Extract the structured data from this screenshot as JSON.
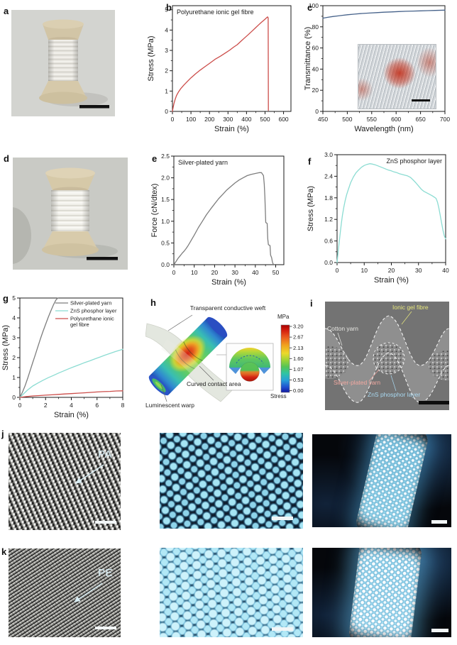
{
  "panels": {
    "a": "a",
    "b": "b",
    "c": "c",
    "d": "d",
    "e": "e",
    "f": "f",
    "g": "g",
    "h": "h",
    "i": "i",
    "j": "j",
    "k": "k"
  },
  "panel_h": {
    "labels": {
      "weft": "Transparent conductive weft",
      "contact": "Curved contact area",
      "warp": "Luminescent warp"
    },
    "colorbar": {
      "unit": "MPa",
      "caption": "Stress",
      "ticks": [
        "3.20",
        "2.67",
        "2.13",
        "1.60",
        "1.07",
        "0.53",
        "0.00"
      ]
    }
  },
  "panel_i": {
    "labels": {
      "ionic": "Ionic gel fibre",
      "cotton": "Cotton yarn",
      "silver": "Silver-plated yarn",
      "zns": "ZnS phosphor layer"
    }
  },
  "panel_j": {
    "fibre_label": "PA"
  },
  "panel_k": {
    "fibre_label": "PE"
  },
  "chart_data": [
    {
      "panel": "b",
      "type": "line",
      "title": "Polyurethane ionic gel fibre",
      "title_pos": "tl",
      "xlabel": "Strain (%)",
      "ylabel": "Stress (MPa)",
      "xlim": [
        0,
        640
      ],
      "ylim": [
        0,
        5.2
      ],
      "xticks": [
        0,
        100,
        200,
        300,
        400,
        500,
        600
      ],
      "yticks": [
        0,
        1,
        2,
        3,
        4,
        5
      ],
      "legend": false,
      "series": [
        {
          "name": "Polyurethane ionic gel fibre",
          "color": "#cc4d4a",
          "points": [
            [
              0,
              0
            ],
            [
              4,
              0.2
            ],
            [
              8,
              0.38
            ],
            [
              14,
              0.58
            ],
            [
              22,
              0.78
            ],
            [
              32,
              0.95
            ],
            [
              45,
              1.12
            ],
            [
              60,
              1.28
            ],
            [
              80,
              1.47
            ],
            [
              100,
              1.65
            ],
            [
              125,
              1.85
            ],
            [
              150,
              2.03
            ],
            [
              175,
              2.2
            ],
            [
              200,
              2.36
            ],
            [
              230,
              2.56
            ],
            [
              260,
              2.72
            ],
            [
              290,
              2.9
            ],
            [
              310,
              3.02
            ],
            [
              330,
              3.16
            ],
            [
              350,
              3.28
            ],
            [
              370,
              3.45
            ],
            [
              390,
              3.62
            ],
            [
              410,
              3.78
            ],
            [
              430,
              3.95
            ],
            [
              450,
              4.12
            ],
            [
              465,
              4.25
            ],
            [
              480,
              4.38
            ],
            [
              492,
              4.47
            ],
            [
              502,
              4.55
            ],
            [
              510,
              4.62
            ],
            [
              514,
              4.65
            ],
            [
              517,
              4.6
            ],
            [
              518,
              0.05
            ]
          ]
        }
      ]
    },
    {
      "panel": "c",
      "type": "line",
      "title": "",
      "title_pos": "tl",
      "xlabel": "Wavelength (nm)",
      "ylabel": "Transmittance (%)",
      "xlim": [
        450,
        700
      ],
      "ylim": [
        0,
        100
      ],
      "xticks": [
        450,
        500,
        550,
        600,
        650,
        700
      ],
      "yticks": [
        0,
        20,
        40,
        60,
        80,
        100
      ],
      "legend": false,
      "series": [
        {
          "name": "Transmittance",
          "color": "#46628a",
          "points": [
            [
              450,
              88.2
            ],
            [
              460,
              89.0
            ],
            [
              470,
              89.7
            ],
            [
              480,
              90.3
            ],
            [
              490,
              90.9
            ],
            [
              500,
              91.4
            ],
            [
              515,
              92.0
            ],
            [
              530,
              92.6
            ],
            [
              545,
              93.0
            ],
            [
              560,
              93.4
            ],
            [
              575,
              93.8
            ],
            [
              590,
              94.1
            ],
            [
              605,
              94.4
            ],
            [
              620,
              94.7
            ],
            [
              635,
              94.9
            ],
            [
              650,
              95.1
            ],
            [
              665,
              95.3
            ],
            [
              680,
              95.5
            ],
            [
              700,
              95.8
            ]
          ]
        }
      ]
    },
    {
      "panel": "e",
      "type": "line",
      "title": "Silver-plated yarn",
      "title_pos": "tl",
      "xlabel": "Strain (%)",
      "ylabel": "Force (cN/dtex)",
      "xlim": [
        0,
        54
      ],
      "ylim": [
        0,
        2.5
      ],
      "xticks": [
        0,
        10,
        20,
        30,
        40,
        50
      ],
      "yticks": [
        0,
        0.5,
        1,
        1.5,
        2,
        2.5
      ],
      "ytick_labels": [
        "0.0",
        "0.5",
        "1.0",
        "1.5",
        "2.0",
        "2.5"
      ],
      "legend": false,
      "series": [
        {
          "name": "Silver-plated yarn",
          "color": "#7e7e7e",
          "points": [
            [
              0,
              0
            ],
            [
              1,
              0.07
            ],
            [
              2,
              0.14
            ],
            [
              3,
              0.2
            ],
            [
              4,
              0.26
            ],
            [
              5,
              0.31
            ],
            [
              6,
              0.37
            ],
            [
              7,
              0.44
            ],
            [
              8,
              0.52
            ],
            [
              9,
              0.6
            ],
            [
              10,
              0.68
            ],
            [
              12,
              0.85
            ],
            [
              14,
              1.0
            ],
            [
              16,
              1.15
            ],
            [
              18,
              1.28
            ],
            [
              20,
              1.4
            ],
            [
              22,
              1.52
            ],
            [
              24,
              1.62
            ],
            [
              26,
              1.72
            ],
            [
              28,
              1.8
            ],
            [
              30,
              1.88
            ],
            [
              32,
              1.95
            ],
            [
              34,
              2.0
            ],
            [
              36,
              2.05
            ],
            [
              38,
              2.08
            ],
            [
              40,
              2.1
            ],
            [
              42,
              2.12
            ],
            [
              43,
              2.12
            ],
            [
              44,
              2.05
            ],
            [
              44.4,
              1.85
            ],
            [
              44.7,
              1.55
            ],
            [
              44.9,
              1.25
            ],
            [
              45.1,
              0.97
            ],
            [
              45.8,
              0.95
            ],
            [
              46.1,
              0.6
            ],
            [
              46.4,
              0.46
            ],
            [
              47.2,
              0.44
            ],
            [
              47.5,
              0.22
            ],
            [
              48,
              0.16
            ],
            [
              48.4,
              0.06
            ],
            [
              48.8,
              0.01
            ]
          ]
        }
      ]
    },
    {
      "panel": "f",
      "type": "line",
      "title": "ZnS phosphor layer",
      "title_pos": "tr",
      "xlabel": "Strain (%)",
      "ylabel": "Stress (MPa)",
      "xlim": [
        0,
        40
      ],
      "ylim": [
        0,
        3
      ],
      "xticks": [
        0,
        10,
        20,
        30,
        40
      ],
      "yticks": [
        0,
        0.6,
        1.2,
        1.8,
        2.4,
        3
      ],
      "ytick_labels": [
        "0.0",
        "0.6",
        "1.2",
        "1.8",
        "2.4",
        "3.0"
      ],
      "legend": false,
      "series": [
        {
          "name": "ZnS phosphor layer",
          "color": "#8bdcd2",
          "points": [
            [
              0,
              0
            ],
            [
              0.4,
              0.3
            ],
            [
              0.8,
              0.58
            ],
            [
              1.2,
              0.85
            ],
            [
              1.6,
              1.1
            ],
            [
              2,
              1.32
            ],
            [
              2.5,
              1.55
            ],
            [
              3,
              1.73
            ],
            [
              3.5,
              1.88
            ],
            [
              4,
              2.0
            ],
            [
              5,
              2.22
            ],
            [
              6,
              2.38
            ],
            [
              7,
              2.5
            ],
            [
              8,
              2.58
            ],
            [
              9,
              2.65
            ],
            [
              10,
              2.7
            ],
            [
              11,
              2.73
            ],
            [
              12,
              2.75
            ],
            [
              13,
              2.74
            ],
            [
              14,
              2.72
            ],
            [
              15,
              2.69
            ],
            [
              16,
              2.66
            ],
            [
              17,
              2.63
            ],
            [
              18,
              2.6
            ],
            [
              19,
              2.57
            ],
            [
              20,
              2.55
            ],
            [
              21,
              2.52
            ],
            [
              22,
              2.5
            ],
            [
              23,
              2.47
            ],
            [
              24,
              2.45
            ],
            [
              25,
              2.43
            ],
            [
              26,
              2.41
            ],
            [
              27,
              2.37
            ],
            [
              28,
              2.3
            ],
            [
              29,
              2.22
            ],
            [
              30,
              2.13
            ],
            [
              31,
              2.04
            ],
            [
              32,
              1.98
            ],
            [
              32.5,
              1.96
            ],
            [
              33,
              1.94
            ],
            [
              34,
              1.9
            ],
            [
              35,
              1.86
            ],
            [
              36,
              1.81
            ],
            [
              36.5,
              1.78
            ],
            [
              37,
              1.68
            ],
            [
              37.5,
              1.52
            ],
            [
              38,
              1.32
            ],
            [
              38.5,
              1.1
            ],
            [
              39,
              0.9
            ],
            [
              39.5,
              0.74
            ],
            [
              40,
              0.66
            ]
          ]
        }
      ]
    },
    {
      "panel": "g",
      "type": "line",
      "title": "",
      "title_pos": "tl",
      "xlabel": "Strain (%)",
      "ylabel": "Stress (MPa)",
      "xlim": [
        0,
        8
      ],
      "ylim": [
        0,
        5
      ],
      "xticks": [
        0,
        2,
        4,
        6,
        8
      ],
      "yticks": [
        0,
        1,
        2,
        3,
        4,
        5
      ],
      "legend": true,
      "series": [
        {
          "name": "Silver-plated yarn",
          "legend_lines": [
            "Silver-plated yarn"
          ],
          "color": "#7e7e7e",
          "points": [
            [
              0,
              0
            ],
            [
              0.2,
              0.26
            ],
            [
              0.4,
              0.58
            ],
            [
              0.6,
              0.95
            ],
            [
              0.8,
              1.35
            ],
            [
              1.0,
              1.75
            ],
            [
              1.2,
              2.15
            ],
            [
              1.4,
              2.55
            ],
            [
              1.6,
              2.95
            ],
            [
              1.8,
              3.32
            ],
            [
              2.0,
              3.68
            ],
            [
              2.2,
              4.02
            ],
            [
              2.4,
              4.34
            ],
            [
              2.6,
              4.64
            ],
            [
              2.8,
              4.9
            ],
            [
              2.95,
              5.0
            ]
          ]
        },
        {
          "name": "ZnS phosphor layer",
          "legend_lines": [
            "ZnS phosphor layer"
          ],
          "color": "#8bdcd2",
          "points": [
            [
              0,
              0
            ],
            [
              0.2,
              0.12
            ],
            [
              0.4,
              0.25
            ],
            [
              0.6,
              0.37
            ],
            [
              0.8,
              0.47
            ],
            [
              1.0,
              0.57
            ],
            [
              1.4,
              0.72
            ],
            [
              1.8,
              0.86
            ],
            [
              2.2,
              0.99
            ],
            [
              2.6,
              1.1
            ],
            [
              3.0,
              1.22
            ],
            [
              3.4,
              1.33
            ],
            [
              3.8,
              1.44
            ],
            [
              4.2,
              1.54
            ],
            [
              4.6,
              1.64
            ],
            [
              5.0,
              1.74
            ],
            [
              5.4,
              1.83
            ],
            [
              5.8,
              1.93
            ],
            [
              6.2,
              2.02
            ],
            [
              6.6,
              2.12
            ],
            [
              7.0,
              2.21
            ],
            [
              7.4,
              2.3
            ],
            [
              7.8,
              2.38
            ],
            [
              8,
              2.42
            ]
          ]
        },
        {
          "name": "Polyurethane ionic gel fibre",
          "legend_lines": [
            "Polyurethane ionic",
            "gel fibre"
          ],
          "color": "#cc4d4a",
          "points": [
            [
              0,
              0
            ],
            [
              0.5,
              0.04
            ],
            [
              1,
              0.07
            ],
            [
              1.5,
              0.09
            ],
            [
              2,
              0.11
            ],
            [
              2.5,
              0.13
            ],
            [
              3,
              0.15
            ],
            [
              3.5,
              0.17
            ],
            [
              4,
              0.19
            ],
            [
              4.5,
              0.21
            ],
            [
              5,
              0.23
            ],
            [
              5.5,
              0.25
            ],
            [
              6,
              0.27
            ],
            [
              6.5,
              0.29
            ],
            [
              7,
              0.3
            ],
            [
              7.5,
              0.32
            ],
            [
              8,
              0.33
            ]
          ]
        }
      ]
    }
  ]
}
